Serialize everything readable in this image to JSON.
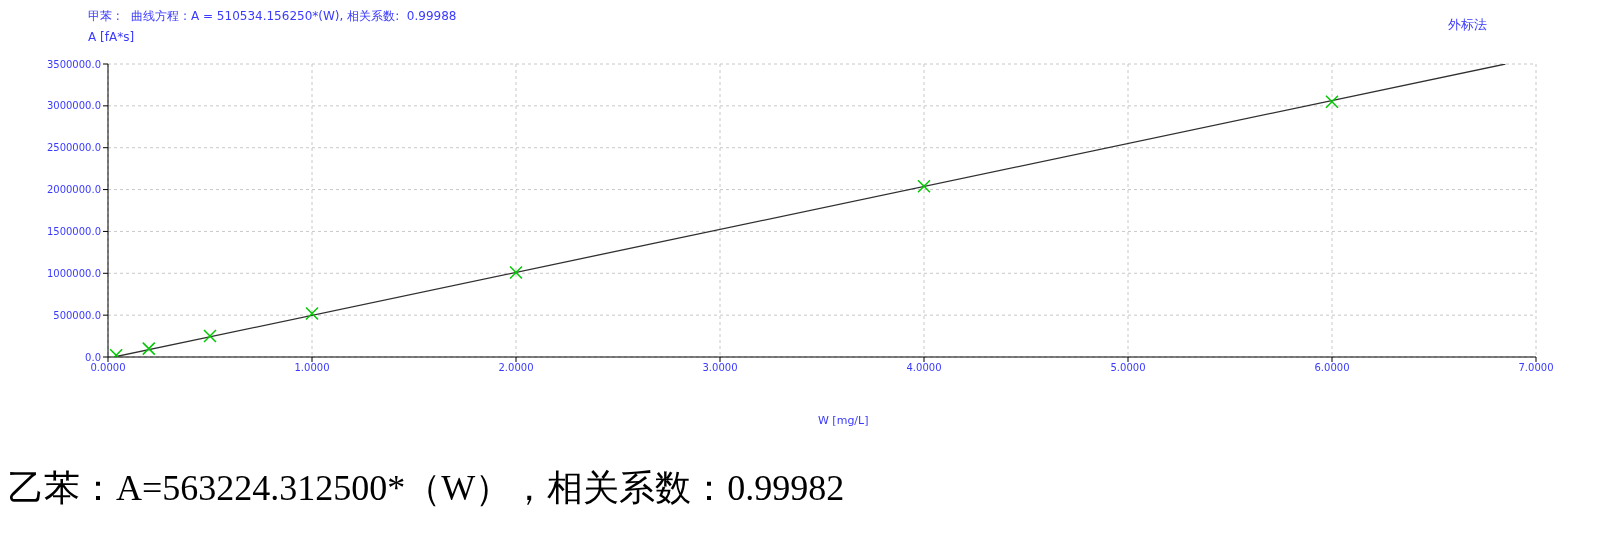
{
  "chart_data": {
    "type": "scatter",
    "title": "甲苯 :   曲线方程 : A = 510534.156250*(W), 相关系数:  0.99988",
    "xlabel": "W [mg/L]",
    "ylabel": "A [fA*s]",
    "annotations": [
      "外标法",
      "乙苯：A=563224.312500*（W），相关系数：0.99982"
    ],
    "series": [
      {
        "color": "#00c800",
        "x": [
          0.04,
          0.2,
          0.5,
          1,
          2,
          4,
          6
        ],
        "values": [
          20000,
          100000,
          250000,
          520000,
          1010000,
          2040000,
          3050000
        ]
      },
      {
        "type": "line",
        "marker": "none",
        "color": "#303030",
        "x": [
          0.03,
          6.85
        ],
        "values": [
          0,
          3500000
        ]
      }
    ],
    "marker": "cross",
    "line_style": "solid",
    "xlim": [
      0,
      7
    ],
    "xticks": [
      {
        "value": 0,
        "label": "0.0000"
      },
      {
        "value": 1,
        "label": "1.0000"
      },
      {
        "value": 2,
        "label": "2.0000"
      },
      {
        "value": 3,
        "label": "3.0000"
      },
      {
        "value": 4,
        "label": "4.0000"
      },
      {
        "value": 5,
        "label": "5.0000"
      },
      {
        "value": 6,
        "label": "6.0000"
      },
      {
        "value": 7,
        "label": "7.0000"
      }
    ],
    "ylim": [
      0,
      3500000
    ],
    "yticks": [
      {
        "value": 0,
        "label": "0.0"
      },
      {
        "value": 500000,
        "label": "500000.0"
      },
      {
        "value": 1000000,
        "label": "1000000.0"
      },
      {
        "value": 1500000,
        "label": "1500000.0"
      },
      {
        "value": 2000000,
        "label": "2000000.0"
      },
      {
        "value": 2500000,
        "label": "2500000.0"
      },
      {
        "value": 3000000,
        "label": "3000000.0"
      },
      {
        "value": 3500000,
        "label": "3500000.0"
      }
    ],
    "grid": true
  }
}
